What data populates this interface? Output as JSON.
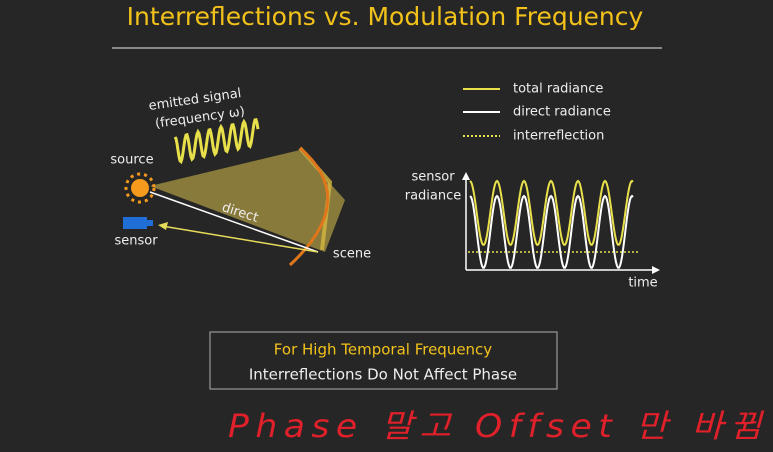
{
  "header": {
    "title": "Interreflections vs. Modulation Frequency"
  },
  "diagram": {
    "emitted_signal": [
      "emitted signal",
      "(frequency ω)"
    ],
    "source": "source",
    "sensor": "sensor",
    "direct": "direct",
    "scene": "scene"
  },
  "plot": {
    "legend": [
      "total radiance",
      "direct radiance",
      "interreflection"
    ],
    "y_label": [
      "sensor",
      "radiance"
    ],
    "x_label": "time"
  },
  "callout": {
    "lines": [
      "For High Temporal Frequency",
      "Interreflections Do Not Affect Phase"
    ]
  },
  "annotation": "Phase 말고 Offset 만 바뀜"
}
